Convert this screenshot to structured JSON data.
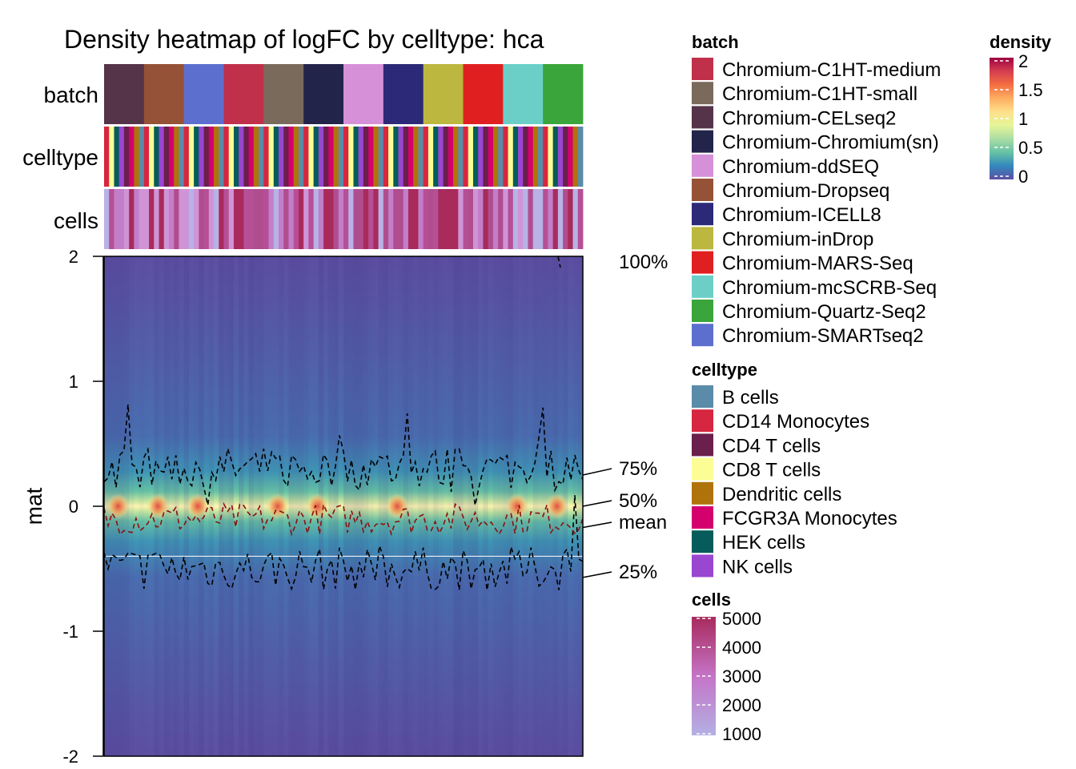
{
  "chart_data": {
    "type": "heatmap",
    "title": "Density heatmap of logFC by celltype: hca",
    "ylabel": "mat",
    "ylim": [
      -2,
      2
    ],
    "y_ticks": [
      "2",
      "1",
      "0",
      "-1",
      "-2"
    ],
    "annotation_rows": [
      "batch",
      "celltype",
      "cells"
    ],
    "quantile_labels": [
      {
        "label": "100%",
        "value": 2.05
      },
      {
        "label": "75%",
        "value": 0.25
      },
      {
        "label": "50%",
        "value": 0.0
      },
      {
        "label": "mean",
        "value": -0.17
      },
      {
        "label": "25%",
        "value": -0.57
      }
    ],
    "column_batches": [
      "Chromium-CELseq2",
      "Chromium-Dropseq",
      "Chromium-SMARTseq2",
      "Chromium-C1HT-medium",
      "Chromium-C1HT-small",
      "Chromium-Chromium(sn)",
      "Chromium-ddSEQ",
      "Chromium-ICELL8",
      "Chromium-inDrop",
      "Chromium-MARS-Seq",
      "Chromium-mcSCRB-Seq",
      "Chromium-Quartz-Seq2"
    ],
    "celltype_cycle": [
      "CD14 Monocytes",
      "CD8 T cells",
      "HEK cells",
      "NK cells",
      "CD4 T cells",
      "FCGR3A Monocytes",
      "Dendritic cells",
      "B cells"
    ],
    "density_hotspots": [
      0,
      1,
      2,
      4,
      5,
      7,
      10,
      11
    ],
    "reference_line": -0.4,
    "legends": {
      "batch": {
        "title": "batch",
        "items": [
          {
            "label": "Chromium-C1HT-medium",
            "color": "#c0304a"
          },
          {
            "label": "Chromium-C1HT-small",
            "color": "#7a6a5c"
          },
          {
            "label": "Chromium-CELseq2",
            "color": "#55344a"
          },
          {
            "label": "Chromium-Chromium(sn)",
            "color": "#22244a"
          },
          {
            "label": "Chromium-ddSEQ",
            "color": "#d690d8"
          },
          {
            "label": "Chromium-Dropseq",
            "color": "#955236"
          },
          {
            "label": "Chromium-ICELL8",
            "color": "#2c2a78"
          },
          {
            "label": "Chromium-inDrop",
            "color": "#bcb73e"
          },
          {
            "label": "Chromium-MARS-Seq",
            "color": "#e02020"
          },
          {
            "label": "Chromium-mcSCRB-Seq",
            "color": "#6bcfc8"
          },
          {
            "label": "Chromium-Quartz-Seq2",
            "color": "#3aa53a"
          },
          {
            "label": "Chromium-SMARTseq2",
            "color": "#5d6fce"
          }
        ]
      },
      "celltype": {
        "title": "celltype",
        "items": [
          {
            "label": "B cells",
            "color": "#5a8ba8"
          },
          {
            "label": "CD14 Monocytes",
            "color": "#d72640"
          },
          {
            "label": "CD4 T cells",
            "color": "#6a1f4c"
          },
          {
            "label": "CD8 T cells",
            "color": "#fdfd96"
          },
          {
            "label": "Dendritic cells",
            "color": "#b0720a"
          },
          {
            "label": "FCGR3A Monocytes",
            "color": "#d4006e"
          },
          {
            "label": "HEK cells",
            "color": "#055c5a"
          },
          {
            "label": "NK cells",
            "color": "#9946d0"
          }
        ]
      },
      "density": {
        "title": "density",
        "ticks": [
          "2",
          "1.5",
          "1",
          "0.5",
          "0"
        ],
        "range": [
          0,
          2
        ],
        "colors": [
          "#5e4fa2",
          "#3288bd",
          "#66c2a5",
          "#abdda4",
          "#e6f598",
          "#fee08b",
          "#fdae61",
          "#f46d43",
          "#d53e4f",
          "#9e0142"
        ]
      },
      "cells": {
        "title": "cells",
        "ticks": [
          "5000",
          "4000",
          "3000",
          "2000",
          "1000"
        ],
        "range": [
          1000,
          5000
        ],
        "colors": [
          "#b3b0e4",
          "#c474c6",
          "#a82b5c"
        ]
      }
    }
  }
}
